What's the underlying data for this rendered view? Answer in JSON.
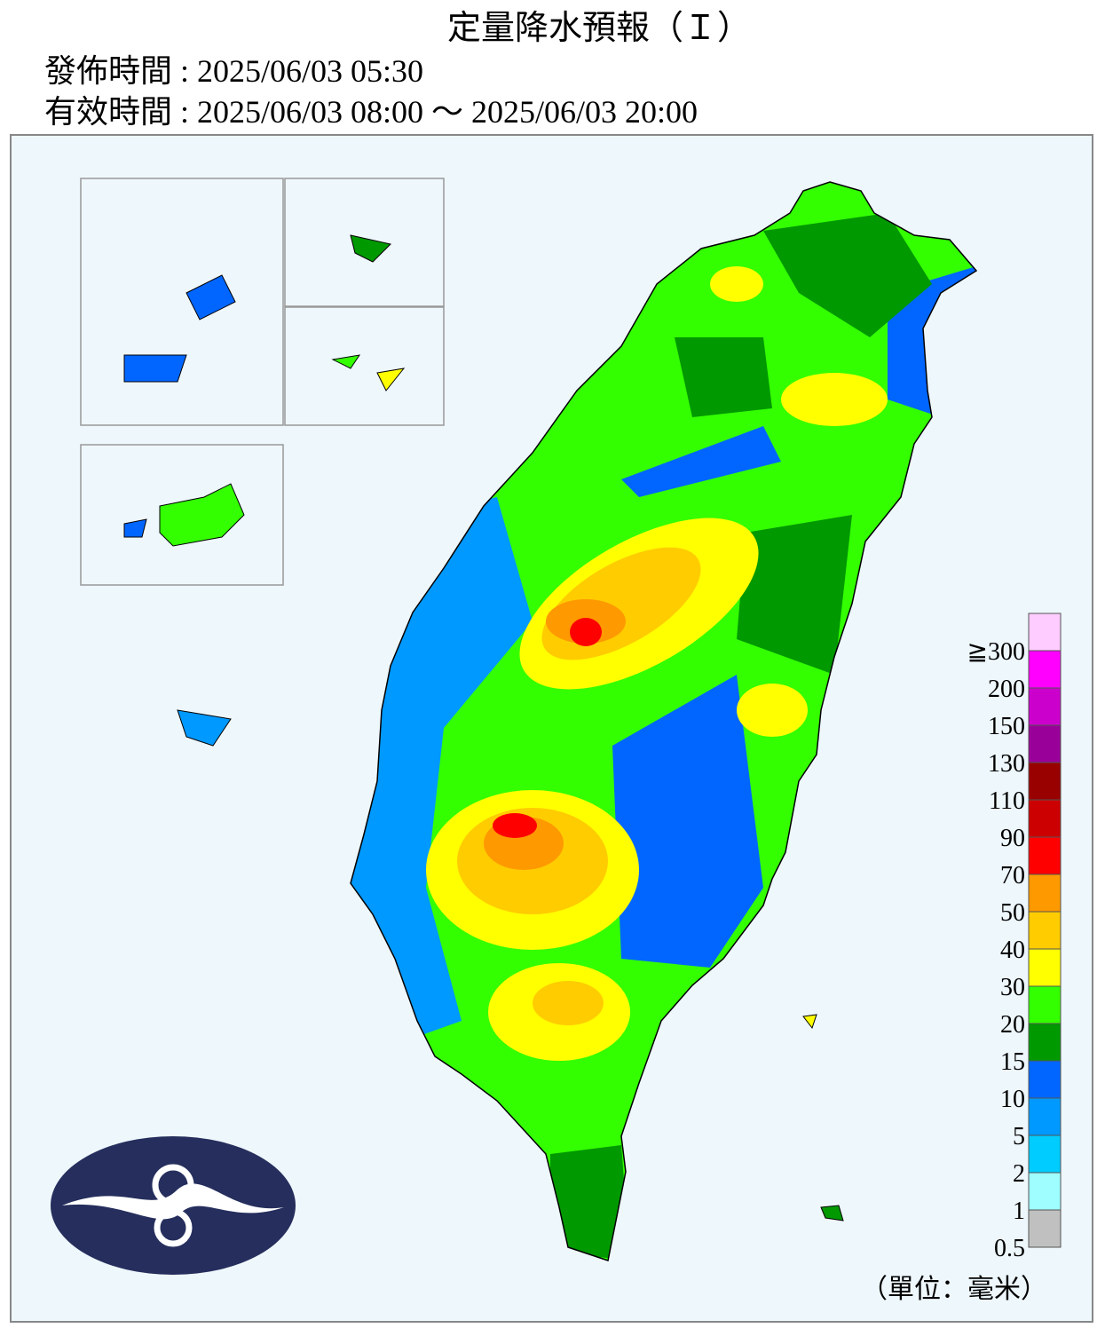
{
  "header": {
    "title": "定量降水預報（Ｉ）",
    "issued": "發佈時間 : 2025/06/03 05:30",
    "valid": "有效時間 : 2025/06/03 08:00 ～ 2025/06/03 20:00"
  },
  "legend": {
    "unit": "（單位：毫米）",
    "levels": [
      {
        "label": "0.5",
        "color": "#c0c0c0"
      },
      {
        "label": "1",
        "color": "#9ffeff"
      },
      {
        "label": "2",
        "color": "#00ccff"
      },
      {
        "label": "5",
        "color": "#0099ff"
      },
      {
        "label": "10",
        "color": "#0066ff"
      },
      {
        "label": "15",
        "color": "#009900"
      },
      {
        "label": "20",
        "color": "#33ff00"
      },
      {
        "label": "30",
        "color": "#ffff00"
      },
      {
        "label": "40",
        "color": "#ffcc00"
      },
      {
        "label": "50",
        "color": "#ff9900"
      },
      {
        "label": "70",
        "color": "#ff0000"
      },
      {
        "label": "90",
        "color": "#cc0000"
      },
      {
        "label": "110",
        "color": "#990000"
      },
      {
        "label": "130",
        "color": "#990099"
      },
      {
        "label": "150",
        "color": "#cc00cc"
      },
      {
        "label": "200",
        "color": "#ff00ff"
      },
      {
        "label": "≧300",
        "color": "#ffccff"
      }
    ]
  }
}
